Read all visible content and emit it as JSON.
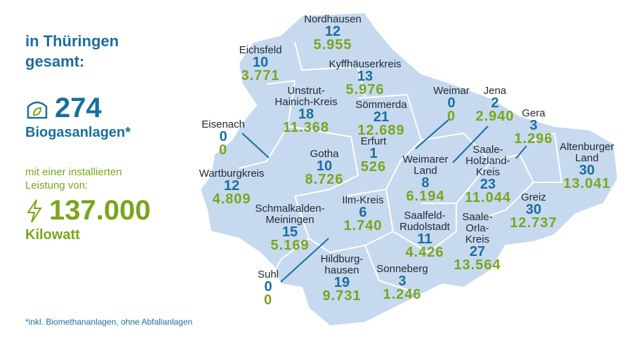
{
  "summary": {
    "heading": "in Thüringen gesamt:",
    "count": "274",
    "count_label": "Biogasanlagen*",
    "capacity_intro": "mit einer installierten Leistung von:",
    "capacity": "137.000",
    "capacity_unit": "Kilowatt"
  },
  "regions": [
    {
      "name": [
        "Nordhausen"
      ],
      "count": "12",
      "power": "5.955"
    },
    {
      "name": [
        "Eichsfeld"
      ],
      "count": "10",
      "power": "3.771"
    },
    {
      "name": [
        "Kyffhäuserkreis"
      ],
      "count": "13",
      "power": "5.976"
    },
    {
      "name": [
        "Unstrut-",
        "Hainich-Kreis"
      ],
      "count": "18",
      "power": "11.368"
    },
    {
      "name": [
        "Sömmerda"
      ],
      "count": "21",
      "power": "12.689"
    },
    {
      "name": [
        "Weimar"
      ],
      "count": "0",
      "power": "0"
    },
    {
      "name": [
        "Jena"
      ],
      "count": "2",
      "power": "2.940"
    },
    {
      "name": [
        "Gera"
      ],
      "count": "3",
      "power": "1.296"
    },
    {
      "name": [
        "Eisenach"
      ],
      "count": "0",
      "power": "0"
    },
    {
      "name": [
        "Erfurt"
      ],
      "count": "1",
      "power": "526"
    },
    {
      "name": [
        "Gotha"
      ],
      "count": "10",
      "power": "8.726"
    },
    {
      "name": [
        "Altenburger",
        "Land"
      ],
      "count": "30",
      "power": "13.041"
    },
    {
      "name": [
        "Saale-",
        "Holzland-",
        "Kreis"
      ],
      "count": "23",
      "power": "11.044"
    },
    {
      "name": [
        "Weimarer",
        "Land"
      ],
      "count": "8",
      "power": "6.194"
    },
    {
      "name": [
        "Wartburgkreis"
      ],
      "count": "12",
      "power": "4.809"
    },
    {
      "name": [
        "Greiz"
      ],
      "count": "30",
      "power": "12.737"
    },
    {
      "name": [
        "Ilm-Kreis"
      ],
      "count": "6",
      "power": "1.740"
    },
    {
      "name": [
        "Schmalkalden-",
        "Meiningen"
      ],
      "count": "15",
      "power": "5.169"
    },
    {
      "name": [
        "Saalfeld-",
        "Rudolstadt"
      ],
      "count": "11",
      "power": "4.426"
    },
    {
      "name": [
        "Saale-",
        "Orla-",
        "Kreis"
      ],
      "count": "27",
      "power": "13.564"
    },
    {
      "name": [
        "Suhl"
      ],
      "count": "0",
      "power": "0"
    },
    {
      "name": [
        "Hildburg-",
        "hausen"
      ],
      "count": "19",
      "power": "9.731"
    },
    {
      "name": [
        "Sonneberg"
      ],
      "count": "3",
      "power": "1.246"
    }
  ],
  "footnote": "*inkl. Biomethananlagen, ohne Abfallanlagen"
}
